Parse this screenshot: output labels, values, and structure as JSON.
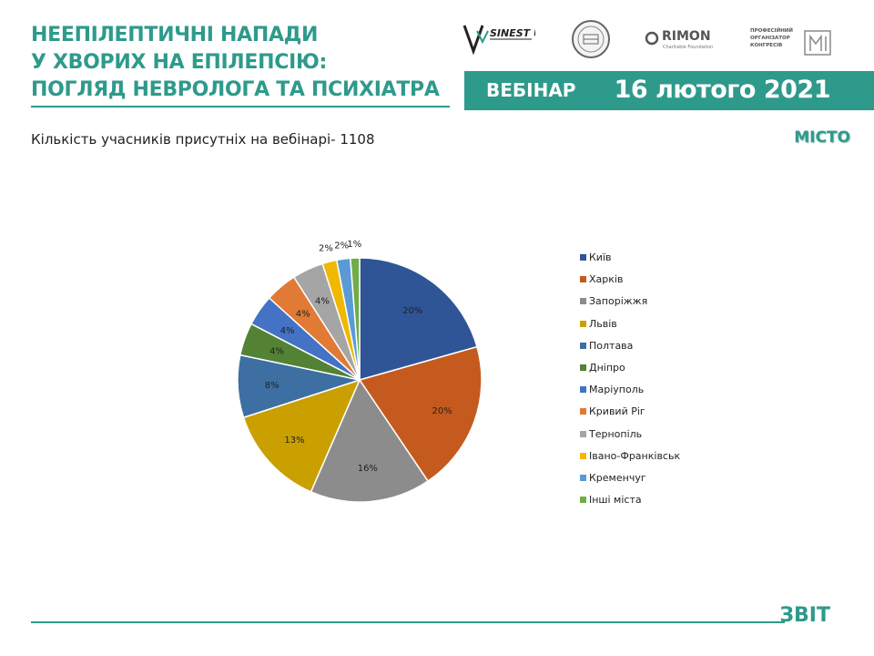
{
  "header": {
    "title_lines": [
      "НЕЕПІЛЕПТИЧНІ НАПАДИ",
      "У ХВОРИХ НА ЕПІЛЕПСІЮ:",
      "ПОГЛЯД НЕВРОЛОГА ТА ПСИХІАТРА"
    ],
    "banner_label": "ВЕБІНАР",
    "banner_date": "16 лютого 2021",
    "logos": {
      "sinaps": "SINEST ULAE",
      "rimon": "RIMON",
      "rimon_sub": "Charitable Foundation",
      "organizer_lines": [
        "ПРОФЕСІЙНИЙ",
        "ОРГАНІЗАТОР",
        "КОНГРЕСІВ"
      ]
    }
  },
  "subtitle": "Кількість учасників присутніх на вебінарі- 1108",
  "section_label": "МІСТО",
  "footer_label": "ЗВІТ",
  "colors": {
    "accent": "#2e9a8b"
  },
  "chart_data": {
    "type": "pie",
    "title": "",
    "legend_position": "right",
    "categories": [
      "Київ",
      "Харків",
      "Запоріжжя",
      "Львів",
      "Полтава",
      "Дніпро",
      "Маріуполь",
      "Кривий Ріг",
      "Тернопіль",
      "Івано-Франківськ",
      "Кременчуг",
      "Інші міста"
    ],
    "values": [
      20.5,
      19.8,
      15.9,
      13.4,
      8.2,
      4.3,
      4.1,
      4.2,
      4.1,
      1.9,
      1.8,
      1.2
    ],
    "data_labels": [
      "20%",
      "20%",
      "16%",
      "13%",
      "8%",
      "4%",
      "4%",
      "4%",
      "4%",
      "2%",
      "2%",
      "1%"
    ],
    "colors": [
      "#2f5597",
      "#c55a1f",
      "#8c8c8c",
      "#c9a000",
      "#3d6fa3",
      "#548235",
      "#4472c4",
      "#e07a34",
      "#a5a5a5",
      "#f0b800",
      "#5b9bd5",
      "#70ad47"
    ]
  }
}
